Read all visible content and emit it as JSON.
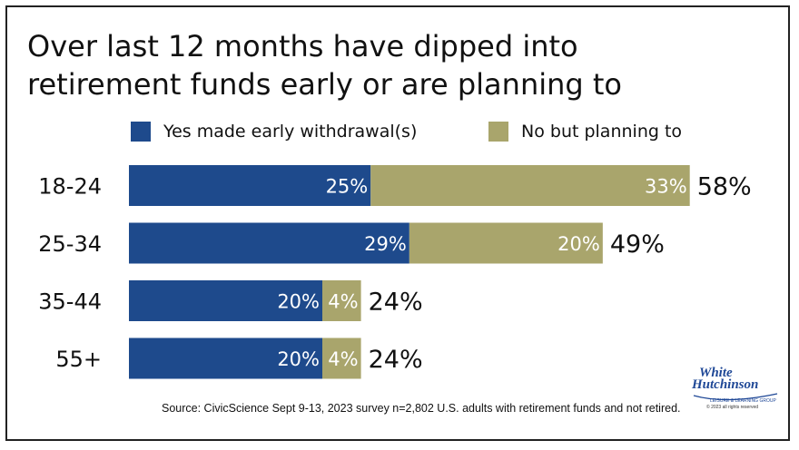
{
  "chart_data": {
    "type": "bar",
    "orientation": "horizontal",
    "stacked": true,
    "title": "Over last 12 months have dipped into retirement funds early or are planning to",
    "title_lines": [
      "Over last 12 months have dipped into",
      "retirement funds early or are planning to"
    ],
    "categories": [
      "18-24",
      "25-34",
      "35-44",
      "55+"
    ],
    "series": [
      {
        "name": "Yes made early withdrawal(s)",
        "color": "#1e4a8c",
        "values": [
          25,
          29,
          20,
          20
        ],
        "labels": [
          "25%",
          "29%",
          "20%",
          "20%"
        ]
      },
      {
        "name": "No but planning to",
        "color": "#a9a56c",
        "values": [
          33,
          20,
          4,
          4
        ],
        "labels": [
          "33%",
          "20%",
          "4%",
          "4%"
        ]
      }
    ],
    "totals": [
      58,
      49,
      24,
      24
    ],
    "total_labels": [
      "58%",
      "49%",
      "24%",
      "24%"
    ],
    "legend_position": "top",
    "grid": false,
    "xlim": [
      0,
      58
    ]
  },
  "source": "Source: CivicScience Sept 9-13, 2023 survey n=2,802 U.S. adults with retirement funds and not retired.",
  "logo": {
    "line1": "White",
    "line2": "Hutchinson",
    "tagline": "LEISURE & LEARNING GROUP",
    "rights": "© 2023 all rights reserved",
    "color": "#1e4796"
  }
}
